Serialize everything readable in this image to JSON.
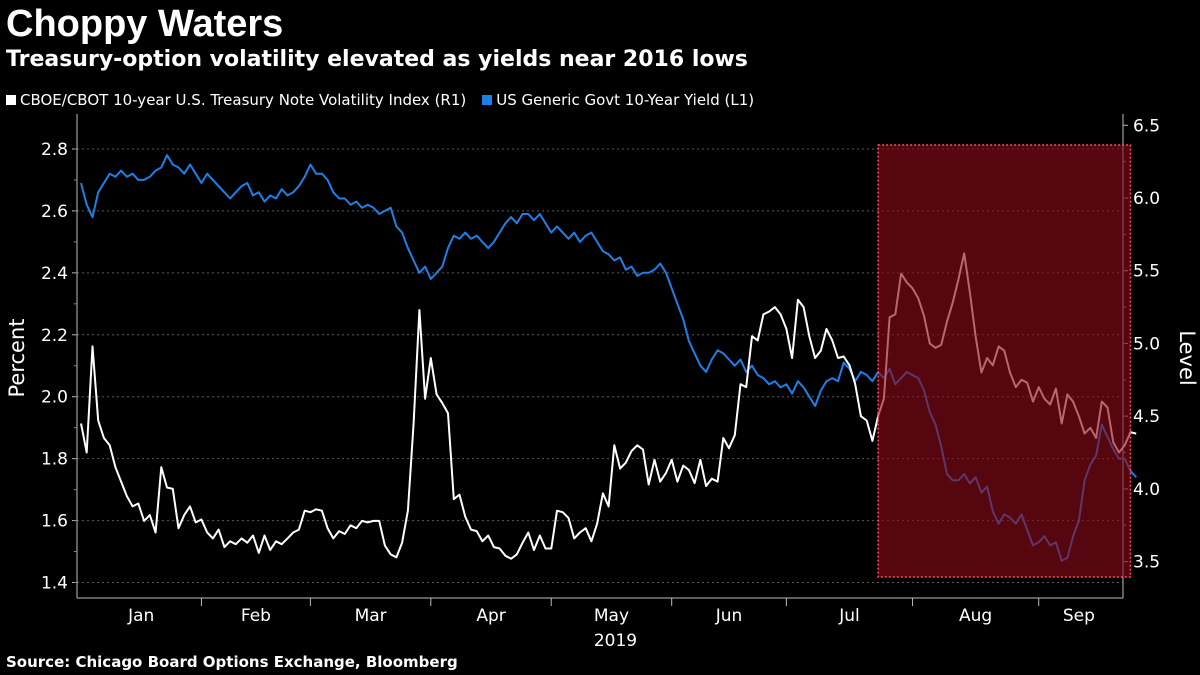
{
  "title": "Choppy Waters",
  "subtitle": "Treasury-option volatility elevated as yields near 2016 lows",
  "source": "Source: Chicago Board Options Exchange, Bloomberg",
  "legend": {
    "vol_label": "CBOE/CBOT 10-year U.S. Treasury Note Volatility Index (R1)",
    "yield_label": "US Generic Govt 10-Year Yield (L1)"
  },
  "chart_data": {
    "type": "line",
    "title": "Choppy Waters",
    "subtitle": "Treasury-option volatility elevated as yields near 2016 lows",
    "year_label": "2019",
    "x_unit": "trading day index (2019, Jan 2 = 0)",
    "months": [
      "Jan",
      "Feb",
      "Mar",
      "Apr",
      "May",
      "Jun",
      "Jul",
      "Aug",
      "Sep"
    ],
    "month_boundaries": [
      0,
      21,
      40,
      61,
      82,
      103,
      123,
      145,
      167,
      181
    ],
    "ylabel_left": "Percent",
    "ylabel_right": "Level",
    "ylim_left": [
      1.35,
      2.9
    ],
    "ylim_right": [
      3.25,
      6.55
    ],
    "yticks_left": [
      "1.4",
      "1.6",
      "1.8",
      "2.0",
      "2.2",
      "2.4",
      "2.6",
      "2.8"
    ],
    "yticks_right": [
      "3.5",
      "4.0",
      "4.5",
      "5.0",
      "5.5",
      "6.0",
      "6.5"
    ],
    "grid": true,
    "legend_position": "top-left",
    "colors": {
      "yield": "#1e7fe6",
      "vol": "#ffffff",
      "highlight": "#8b0a18",
      "highlight_border": "#ff4d5e"
    },
    "highlight": {
      "x_start": 139,
      "x_end": 183
    },
    "series": [
      {
        "name": "US Generic Govt 10-Year Yield (L1)",
        "axis": "left",
        "values": [
          2.69,
          2.62,
          2.58,
          2.66,
          2.69,
          2.72,
          2.71,
          2.73,
          2.71,
          2.72,
          2.7,
          2.7,
          2.71,
          2.73,
          2.74,
          2.78,
          2.75,
          2.74,
          2.72,
          2.75,
          2.72,
          2.69,
          2.72,
          2.7,
          2.68,
          2.66,
          2.64,
          2.66,
          2.68,
          2.69,
          2.65,
          2.66,
          2.63,
          2.65,
          2.64,
          2.67,
          2.65,
          2.66,
          2.68,
          2.71,
          2.75,
          2.72,
          2.72,
          2.7,
          2.66,
          2.64,
          2.64,
          2.62,
          2.63,
          2.61,
          2.62,
          2.61,
          2.59,
          2.6,
          2.61,
          2.55,
          2.53,
          2.48,
          2.44,
          2.4,
          2.42,
          2.38,
          2.4,
          2.42,
          2.48,
          2.52,
          2.51,
          2.53,
          2.51,
          2.52,
          2.5,
          2.48,
          2.5,
          2.53,
          2.56,
          2.58,
          2.56,
          2.59,
          2.59,
          2.57,
          2.59,
          2.56,
          2.53,
          2.55,
          2.53,
          2.51,
          2.53,
          2.5,
          2.52,
          2.53,
          2.5,
          2.47,
          2.46,
          2.44,
          2.45,
          2.41,
          2.42,
          2.39,
          2.4,
          2.4,
          2.41,
          2.43,
          2.4,
          2.35,
          2.3,
          2.25,
          2.18,
          2.14,
          2.1,
          2.08,
          2.12,
          2.15,
          2.14,
          2.12,
          2.1,
          2.12,
          2.08,
          2.1,
          2.07,
          2.06,
          2.04,
          2.05,
          2.03,
          2.04,
          2.01,
          2.05,
          2.03,
          2.0,
          1.97,
          2.02,
          2.05,
          2.06,
          2.05,
          2.11,
          2.09,
          2.05,
          2.08,
          2.07,
          2.05,
          2.08,
          2.06,
          2.09,
          2.04,
          2.06,
          2.08,
          2.07,
          2.06,
          2.02,
          1.95,
          1.91,
          1.84,
          1.75,
          1.73,
          1.73,
          1.75,
          1.72,
          1.74,
          1.69,
          1.71,
          1.63,
          1.59,
          1.62,
          1.61,
          1.59,
          1.62,
          1.57,
          1.52,
          1.53,
          1.55,
          1.52,
          1.53,
          1.47,
          1.48,
          1.55,
          1.6,
          1.73,
          1.78,
          1.81,
          1.91,
          1.87,
          1.83,
          1.8,
          1.8,
          1.76,
          1.74
        ],
        "line_color": "#1e7fe6"
      },
      {
        "name": "CBOE/CBOT 10-year U.S. Treasury Note Volatility Index (R1)",
        "axis": "right",
        "values": [
          4.45,
          4.25,
          4.98,
          4.47,
          4.35,
          4.3,
          4.15,
          4.05,
          3.95,
          3.88,
          3.9,
          3.78,
          3.82,
          3.7,
          4.15,
          4.01,
          4.0,
          3.73,
          3.82,
          3.88,
          3.77,
          3.79,
          3.7,
          3.66,
          3.72,
          3.6,
          3.64,
          3.62,
          3.66,
          3.63,
          3.68,
          3.56,
          3.68,
          3.58,
          3.64,
          3.62,
          3.66,
          3.7,
          3.72,
          3.85,
          3.84,
          3.86,
          3.85,
          3.73,
          3.66,
          3.71,
          3.69,
          3.75,
          3.73,
          3.78,
          3.77,
          3.78,
          3.78,
          3.61,
          3.55,
          3.53,
          3.63,
          3.85,
          4.45,
          5.23,
          4.62,
          4.9,
          4.65,
          4.59,
          4.52,
          3.93,
          3.96,
          3.81,
          3.72,
          3.71,
          3.64,
          3.68,
          3.6,
          3.59,
          3.54,
          3.52,
          3.55,
          3.63,
          3.7,
          3.58,
          3.68,
          3.59,
          3.59,
          3.85,
          3.84,
          3.8,
          3.66,
          3.7,
          3.73,
          3.64,
          3.76,
          3.97,
          3.88,
          4.3,
          4.14,
          4.18,
          4.26,
          4.3,
          4.27,
          4.03,
          4.2,
          4.05,
          4.11,
          4.2,
          4.05,
          4.16,
          4.13,
          4.04,
          4.2,
          4.02,
          4.07,
          4.05,
          4.35,
          4.28,
          4.37,
          4.72,
          4.7,
          5.05,
          5.02,
          5.2,
          5.22,
          5.25,
          5.2,
          5.1,
          4.9,
          5.3,
          5.25,
          5.05,
          4.9,
          4.95,
          5.1,
          5.02,
          4.9,
          4.91,
          4.85,
          4.72,
          4.5,
          4.47,
          4.33,
          4.5,
          4.62,
          5.18,
          5.2,
          5.48,
          5.42,
          5.38,
          5.31,
          5.19,
          5.0,
          4.97,
          4.99,
          5.15,
          5.28,
          5.44,
          5.62,
          5.35,
          5.05,
          4.8,
          4.9,
          4.85,
          4.98,
          4.95,
          4.8,
          4.7,
          4.75,
          4.73,
          4.6,
          4.7,
          4.62,
          4.58,
          4.69,
          4.45,
          4.65,
          4.6,
          4.5,
          4.38,
          4.42,
          4.35,
          4.6,
          4.56,
          4.32,
          4.25,
          4.3,
          4.39,
          4.38
        ],
        "line_color": "#ffffff"
      }
    ]
  }
}
